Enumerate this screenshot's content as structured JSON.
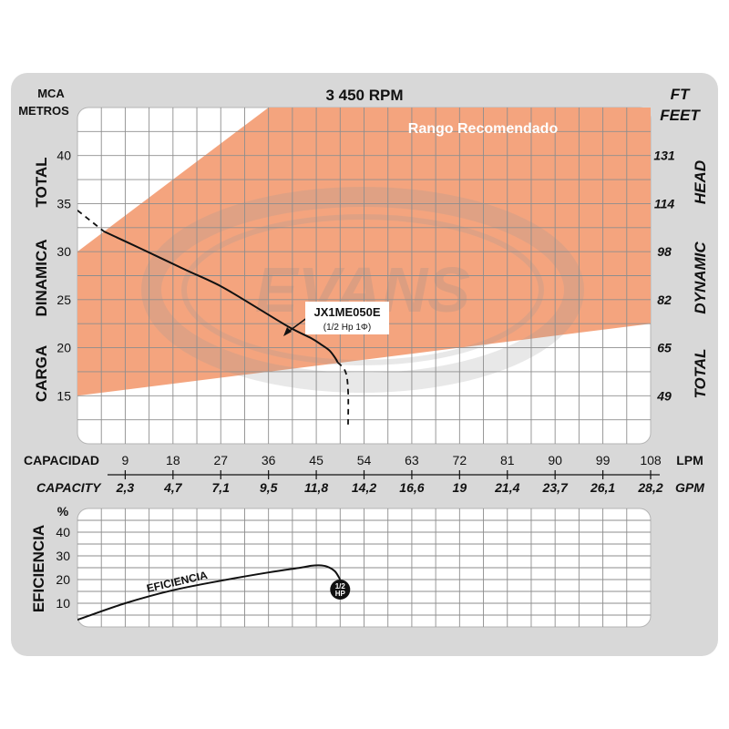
{
  "chart_data": [
    {
      "type": "line",
      "title": "3 450 RPM",
      "left_axis_units": [
        "MCA",
        "METROS"
      ],
      "right_axis_units": [
        "FT",
        "FEET"
      ],
      "left_axis_words": [
        "CARGA",
        "DINAMICA",
        "TOTAL"
      ],
      "right_axis_words": [
        "TOTAL",
        "DYNAMIC",
        "HEAD"
      ],
      "ylim": [
        10,
        45
      ],
      "yticks": [
        15,
        20,
        25,
        30,
        35,
        40
      ],
      "right_ticks": [
        {
          "y": 15,
          "label": "49"
        },
        {
          "y": 20,
          "label": "65"
        },
        {
          "y": 25,
          "label": "82"
        },
        {
          "y": 30,
          "label": "98"
        },
        {
          "y": 35,
          "label": "114"
        },
        {
          "y": 40,
          "label": "131"
        }
      ],
      "xlim": [
        0,
        108
      ],
      "x_label_lpm": "CAPACIDAD",
      "x_unit_lpm": "LPM",
      "xticks_lpm": [
        "9",
        "18",
        "27",
        "36",
        "45",
        "54",
        "63",
        "72",
        "81",
        "90",
        "99",
        "108"
      ],
      "x_label_gpm": "CAPACITY",
      "x_unit_gpm": "GPM",
      "xticks_gpm": [
        "2,3",
        "4,7",
        "7,1",
        "9,5",
        "11,8",
        "14,2",
        "16,6",
        "19",
        "21,4",
        "23,7",
        "26,1",
        "28,2"
      ],
      "grid": true,
      "recommended_range": {
        "label": "Rangο Recomendado",
        "color": "#f4a47e",
        "upper": {
          "x": [
            0,
            36,
            108
          ],
          "y": [
            30,
            45,
            45
          ]
        },
        "lower": {
          "x": [
            0,
            108
          ],
          "y": [
            15,
            22.5
          ]
        }
      },
      "series": [
        {
          "name": "JX1ME050E",
          "subtitle": "(1/2 Hp 1Φ)",
          "color": "#111111",
          "x": [
            5,
            12,
            20,
            27,
            34,
            40,
            44,
            46,
            47.5,
            48.6,
            49
          ],
          "y": [
            32.1,
            30.3,
            28.2,
            26.4,
            24.1,
            22.1,
            21.0,
            20.3,
            19.7,
            18.9,
            18.5
          ]
        }
      ],
      "series_extensions": {
        "style": "dashed",
        "start": {
          "x": [
            0,
            5
          ],
          "y": [
            34.3,
            32.1
          ]
        },
        "end": {
          "x": [
            49,
            50.5,
            51,
            51
          ],
          "y": [
            18.5,
            17.5,
            15.5,
            12.0
          ]
        }
      },
      "watermark": "EVANS"
    },
    {
      "type": "line",
      "ylabel": "EFICIENCIA",
      "unit": "%",
      "ylim": [
        0,
        50
      ],
      "yticks": [
        10,
        20,
        30,
        40
      ],
      "xlim": [
        0,
        108
      ],
      "grid": true,
      "series": [
        {
          "name": "EFICIENCIA",
          "color": "#111111",
          "x": [
            0,
            9,
            18,
            27,
            36,
            42,
            44,
            45.5,
            47,
            48.5,
            49.5
          ],
          "y": [
            3,
            10,
            15.5,
            19.5,
            23,
            25,
            25.8,
            26,
            25.5,
            23.5,
            20
          ]
        }
      ],
      "marker": {
        "line1": "1/2",
        "line2": "HP",
        "x": 49.5,
        "y": 20
      }
    }
  ]
}
